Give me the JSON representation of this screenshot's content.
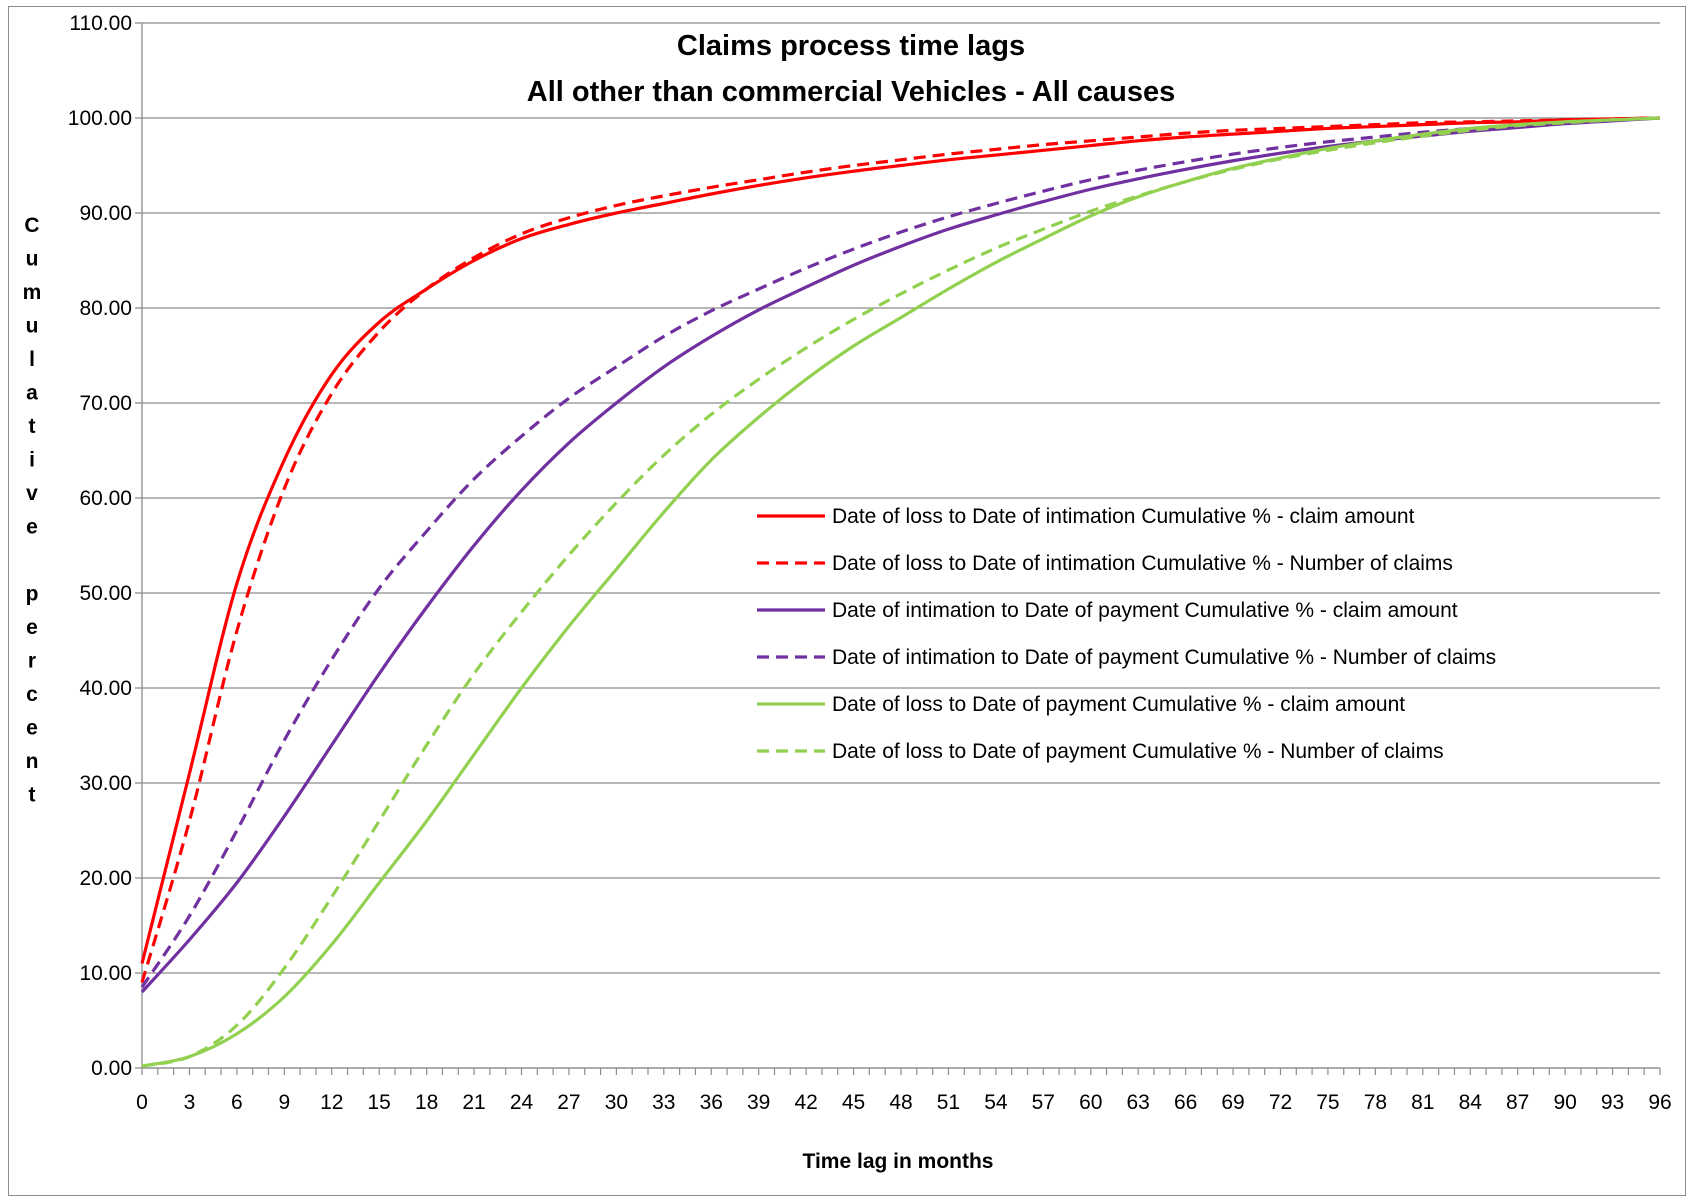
{
  "chart_data": {
    "type": "line",
    "title": [
      "Claims process time lags",
      "All other than commercial Vehicles - All causes"
    ],
    "xlabel": "Time lag in months",
    "ylabel": "Cumulative percent",
    "xlim": [
      0,
      96
    ],
    "ylim": [
      0,
      110
    ],
    "x_ticks": [
      0,
      3,
      6,
      9,
      12,
      15,
      18,
      21,
      24,
      27,
      30,
      33,
      36,
      39,
      42,
      45,
      48,
      51,
      54,
      57,
      60,
      63,
      66,
      69,
      72,
      75,
      78,
      81,
      84,
      87,
      90,
      93,
      96
    ],
    "y_ticks": [
      "0.00",
      "10.00",
      "20.00",
      "30.00",
      "40.00",
      "50.00",
      "60.00",
      "70.00",
      "80.00",
      "90.00",
      "100.00",
      "110.00"
    ],
    "grid": true,
    "legend_position": "center-right",
    "x": [
      0,
      3,
      6,
      9,
      12,
      15,
      18,
      21,
      24,
      27,
      30,
      33,
      36,
      39,
      42,
      45,
      48,
      51,
      54,
      57,
      60,
      63,
      66,
      69,
      72,
      75,
      78,
      81,
      84,
      87,
      90,
      93,
      96
    ],
    "series": [
      {
        "name": "Date of loss to Date of intimation Cumulative % - claim amount",
        "color": "#ff0000",
        "dash": "solid",
        "values": [
          11.0,
          31.0,
          51.0,
          64.0,
          73.0,
          78.5,
          82.0,
          85.0,
          87.3,
          88.8,
          90.0,
          91.0,
          92.0,
          92.9,
          93.7,
          94.4,
          95.0,
          95.6,
          96.1,
          96.6,
          97.1,
          97.6,
          98.0,
          98.3,
          98.6,
          98.9,
          99.1,
          99.3,
          99.5,
          99.6,
          99.8,
          99.9,
          100.0
        ]
      },
      {
        "name": "Date of loss to Date of intimation Cumulative % - Number of claims",
        "color": "#ff0000",
        "dash": "dashed",
        "values": [
          9.0,
          26.0,
          46.0,
          61.0,
          71.0,
          77.5,
          82.0,
          85.3,
          87.8,
          89.5,
          90.8,
          91.8,
          92.7,
          93.5,
          94.3,
          95.0,
          95.6,
          96.2,
          96.7,
          97.2,
          97.6,
          98.0,
          98.4,
          98.7,
          98.9,
          99.1,
          99.3,
          99.5,
          99.6,
          99.7,
          99.8,
          99.9,
          100.0
        ]
      },
      {
        "name": "Date of intimation to Date of payment Cumulative % - claim amount",
        "color": "#7030a0",
        "dash": "solid",
        "values": [
          8.0,
          13.5,
          19.5,
          26.5,
          34.0,
          41.5,
          48.5,
          55.0,
          60.8,
          65.8,
          70.0,
          73.8,
          77.0,
          79.8,
          82.2,
          84.5,
          86.5,
          88.3,
          89.8,
          91.2,
          92.5,
          93.6,
          94.6,
          95.5,
          96.3,
          97.0,
          97.6,
          98.1,
          98.6,
          99.0,
          99.4,
          99.7,
          100.0
        ]
      },
      {
        "name": "Date of intimation to Date of payment Cumulative % - Number of claims",
        "color": "#7030a0",
        "dash": "dashed",
        "values": [
          8.5,
          16.0,
          25.0,
          34.5,
          43.0,
          50.5,
          56.5,
          62.0,
          66.5,
          70.5,
          73.8,
          77.0,
          79.7,
          82.0,
          84.2,
          86.2,
          88.0,
          89.6,
          91.0,
          92.3,
          93.5,
          94.5,
          95.4,
          96.2,
          96.9,
          97.5,
          98.0,
          98.5,
          98.9,
          99.2,
          99.5,
          99.8,
          100.0
        ]
      },
      {
        "name": "Date of loss to Date of payment Cumulative % - claim amount",
        "color": "#92d050",
        "dash": "solid",
        "values": [
          0.2,
          1.2,
          3.6,
          7.5,
          13.0,
          19.5,
          26.0,
          33.0,
          40.0,
          46.5,
          52.5,
          58.5,
          64.0,
          68.5,
          72.5,
          76.0,
          79.0,
          82.0,
          84.8,
          87.3,
          89.7,
          91.7,
          93.3,
          94.7,
          95.8,
          96.8,
          97.6,
          98.3,
          98.9,
          99.3,
          99.6,
          99.8,
          100.0
        ]
      },
      {
        "name": "Date of loss to Date of payment Cumulative % - Number of claims",
        "color": "#92d050",
        "dash": "dashed",
        "values": [
          0.2,
          1.2,
          4.5,
          10.5,
          18.0,
          26.0,
          34.0,
          41.5,
          48.0,
          54.0,
          59.5,
          64.5,
          68.8,
          72.5,
          75.8,
          78.8,
          81.5,
          84.0,
          86.3,
          88.3,
          90.2,
          91.8,
          93.3,
          94.6,
          95.7,
          96.6,
          97.4,
          98.1,
          98.7,
          99.2,
          99.5,
          99.8,
          100.0
        ]
      }
    ]
  }
}
